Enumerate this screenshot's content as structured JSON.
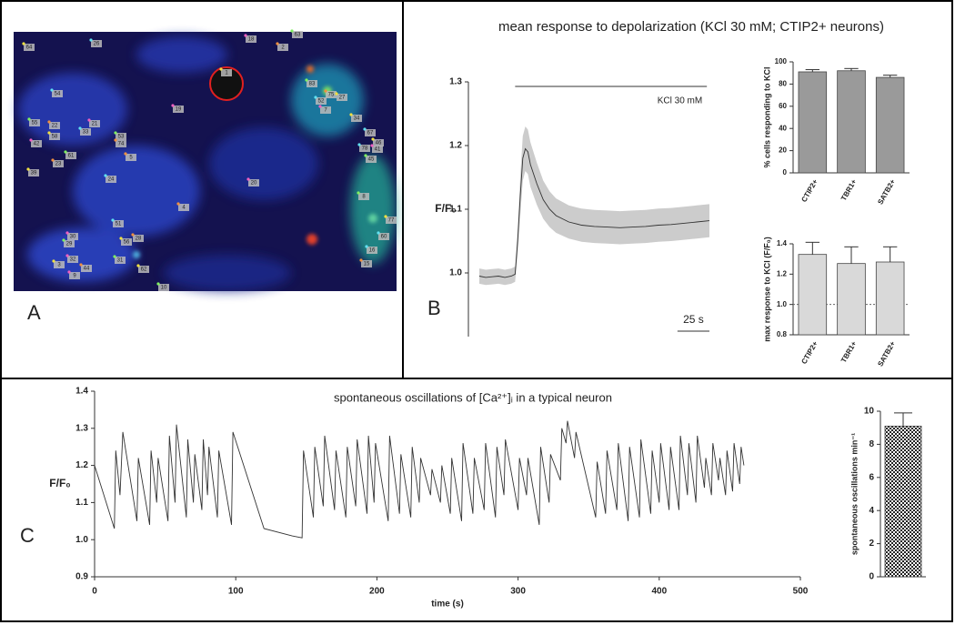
{
  "image": {
    "panel_label": "A",
    "roi_labels": [
      "64",
      "26",
      "18",
      "63",
      "2",
      "1",
      "54",
      "19",
      "83",
      "75",
      "27",
      "52",
      "7",
      "55",
      "22",
      "58",
      "33",
      "21",
      "53",
      "74",
      "34",
      "67",
      "42",
      "61",
      "5",
      "46",
      "78",
      "41",
      "45",
      "23",
      "39",
      "24",
      "20",
      "8",
      "4",
      "77",
      "51",
      "30",
      "29",
      "28",
      "56",
      "60",
      "32",
      "31",
      "44",
      "62",
      "16",
      "9",
      "10",
      "15",
      "3"
    ]
  },
  "chart_data": [
    {
      "type": "line",
      "panel_label": "B",
      "title": "mean response to depolarization (KCl 30 mM; CTIP2+ neurons)",
      "ylabel": "F/F₀",
      "x": [
        0,
        5,
        10,
        15,
        20,
        25,
        28,
        30,
        32,
        34,
        36,
        38,
        40,
        45,
        50,
        55,
        60,
        70,
        80,
        90,
        100,
        110,
        120,
        130,
        140,
        150,
        160,
        170,
        180
      ],
      "values": [
        0.995,
        0.993,
        0.994,
        0.995,
        0.993,
        0.995,
        0.998,
        1.05,
        1.12,
        1.18,
        1.195,
        1.19,
        1.17,
        1.14,
        1.115,
        1.1,
        1.09,
        1.08,
        1.075,
        1.073,
        1.072,
        1.071,
        1.072,
        1.073,
        1.075,
        1.076,
        1.078,
        1.08,
        1.082
      ],
      "lower": [
        0.983,
        0.981,
        0.982,
        0.983,
        0.981,
        0.983,
        0.986,
        1.03,
        1.09,
        1.145,
        1.16,
        1.155,
        1.135,
        1.107,
        1.085,
        1.072,
        1.063,
        1.054,
        1.049,
        1.047,
        1.046,
        1.045,
        1.046,
        1.047,
        1.049,
        1.05,
        1.052,
        1.054,
        1.056
      ],
      "upper": [
        1.007,
        1.005,
        1.006,
        1.007,
        1.005,
        1.007,
        1.01,
        1.07,
        1.15,
        1.215,
        1.23,
        1.225,
        1.205,
        1.173,
        1.145,
        1.128,
        1.117,
        1.106,
        1.101,
        1.099,
        1.098,
        1.097,
        1.098,
        1.099,
        1.101,
        1.102,
        1.104,
        1.106,
        1.108
      ],
      "xlim": [
        0,
        180
      ],
      "ylim": [
        0.9,
        1.3
      ],
      "yticks": [
        {
          "value": 1.0,
          "label": "1.0"
        },
        1.1,
        1.2,
        1.3
      ],
      "stimulus": [
        28,
        178
      ],
      "stimulus_label": "KCl 30 mM",
      "scale_bar": 25,
      "scale_bar_label": "25 s",
      "color": "#333333",
      "band_color": "#cccccc"
    },
    {
      "type": "bar",
      "ylabel": "% cells responding to KCl",
      "categories": [
        "CTIP2+",
        "TBR1+",
        "SATB2+"
      ],
      "values": [
        91,
        92,
        86
      ],
      "errors": [
        2,
        2,
        2
      ],
      "ylim": [
        0,
        100
      ],
      "yticks": [
        0,
        20,
        40,
        60,
        80,
        100
      ],
      "color": "#9a9a9a"
    },
    {
      "type": "bar",
      "ylabel": "max response to KCl (F/F₀)",
      "categories": [
        "CTIP2+",
        "TBR1+",
        "SATB2+"
      ],
      "values": [
        1.33,
        1.27,
        1.28
      ],
      "errors": [
        0.08,
        0.11,
        0.1
      ],
      "ylim": [
        0.8,
        1.4
      ],
      "yticks": [
        0.8,
        {
          "value": 1.0,
          "label": "1.0"
        },
        1.2,
        1.4
      ],
      "reference_line": 1,
      "color": "#d9d9d9"
    },
    {
      "type": "line",
      "panel_label": "C",
      "title": "spontaneous oscillations of [Ca²⁺]ᵢ in a typical neuron",
      "xlabel": "time (s)",
      "ylabel": "F/F₀",
      "x": [
        0,
        14,
        15,
        18,
        20,
        30,
        31,
        39,
        40,
        44,
        45,
        52,
        53,
        57,
        58,
        65,
        66,
        70,
        71,
        76,
        77,
        80,
        81,
        87,
        88,
        97,
        98,
        120,
        140,
        147,
        148,
        155,
        156,
        162,
        163,
        170,
        171,
        178,
        179,
        185,
        186,
        193,
        194,
        198,
        199,
        208,
        209,
        216,
        217,
        224,
        225,
        230,
        231,
        238,
        239,
        245,
        246,
        252,
        253,
        260,
        261,
        268,
        269,
        276,
        277,
        284,
        285,
        290,
        291,
        300,
        301,
        306,
        307,
        315,
        316,
        322,
        323,
        330,
        331,
        334,
        335,
        340,
        341,
        355,
        356,
        362,
        363,
        370,
        371,
        378,
        379,
        386,
        387,
        394,
        395,
        400,
        401,
        407,
        408,
        414,
        415,
        420,
        421,
        426,
        427,
        432,
        433,
        437,
        438,
        442,
        443,
        447,
        448,
        452,
        453,
        457,
        458,
        460
      ],
      "values": [
        1.2,
        1.03,
        1.24,
        1.12,
        1.29,
        1.05,
        1.22,
        1.04,
        1.24,
        1.1,
        1.22,
        1.05,
        1.28,
        1.1,
        1.31,
        1.06,
        1.27,
        1.1,
        1.23,
        1.08,
        1.27,
        1.12,
        1.25,
        1.06,
        1.24,
        1.04,
        1.29,
        1.03,
        1.01,
        1.005,
        1.24,
        1.06,
        1.25,
        1.09,
        1.28,
        1.08,
        1.24,
        1.06,
        1.25,
        1.09,
        1.27,
        1.07,
        1.28,
        1.1,
        1.26,
        1.05,
        1.28,
        1.07,
        1.23,
        1.06,
        1.25,
        1.1,
        1.22,
        1.12,
        1.19,
        1.1,
        1.2,
        1.07,
        1.22,
        1.05,
        1.26,
        1.07,
        1.22,
        1.08,
        1.26,
        1.06,
        1.25,
        1.12,
        1.27,
        1.08,
        1.22,
        1.12,
        1.22,
        1.04,
        1.25,
        1.1,
        1.23,
        1.16,
        1.3,
        1.26,
        1.32,
        1.22,
        1.29,
        1.06,
        1.21,
        1.07,
        1.24,
        1.08,
        1.26,
        1.05,
        1.25,
        1.06,
        1.27,
        1.07,
        1.24,
        1.1,
        1.26,
        1.08,
        1.25,
        1.08,
        1.28,
        1.12,
        1.26,
        1.1,
        1.28,
        1.14,
        1.22,
        1.12,
        1.26,
        1.16,
        1.22,
        1.12,
        1.24,
        1.13,
        1.26,
        1.15,
        1.25,
        1.2
      ],
      "xlim": [
        0,
        500
      ],
      "xticks": [
        0,
        100,
        200,
        300,
        400,
        500
      ],
      "ylim": [
        0.9,
        1.4
      ],
      "yticks": [
        0.9,
        {
          "value": 1.0,
          "label": "1.0"
        },
        1.1,
        1.2,
        1.3,
        1.4
      ],
      "color": "#333333"
    },
    {
      "type": "bar",
      "ylabel": "spontaneous oscillations min⁻¹",
      "values": [
        9.1
      ],
      "errors": [
        0.8
      ],
      "ylim": [
        0,
        10
      ],
      "yticks": [
        0,
        2,
        4,
        6,
        8,
        10
      ],
      "hatch": true,
      "color": "#222222"
    }
  ]
}
